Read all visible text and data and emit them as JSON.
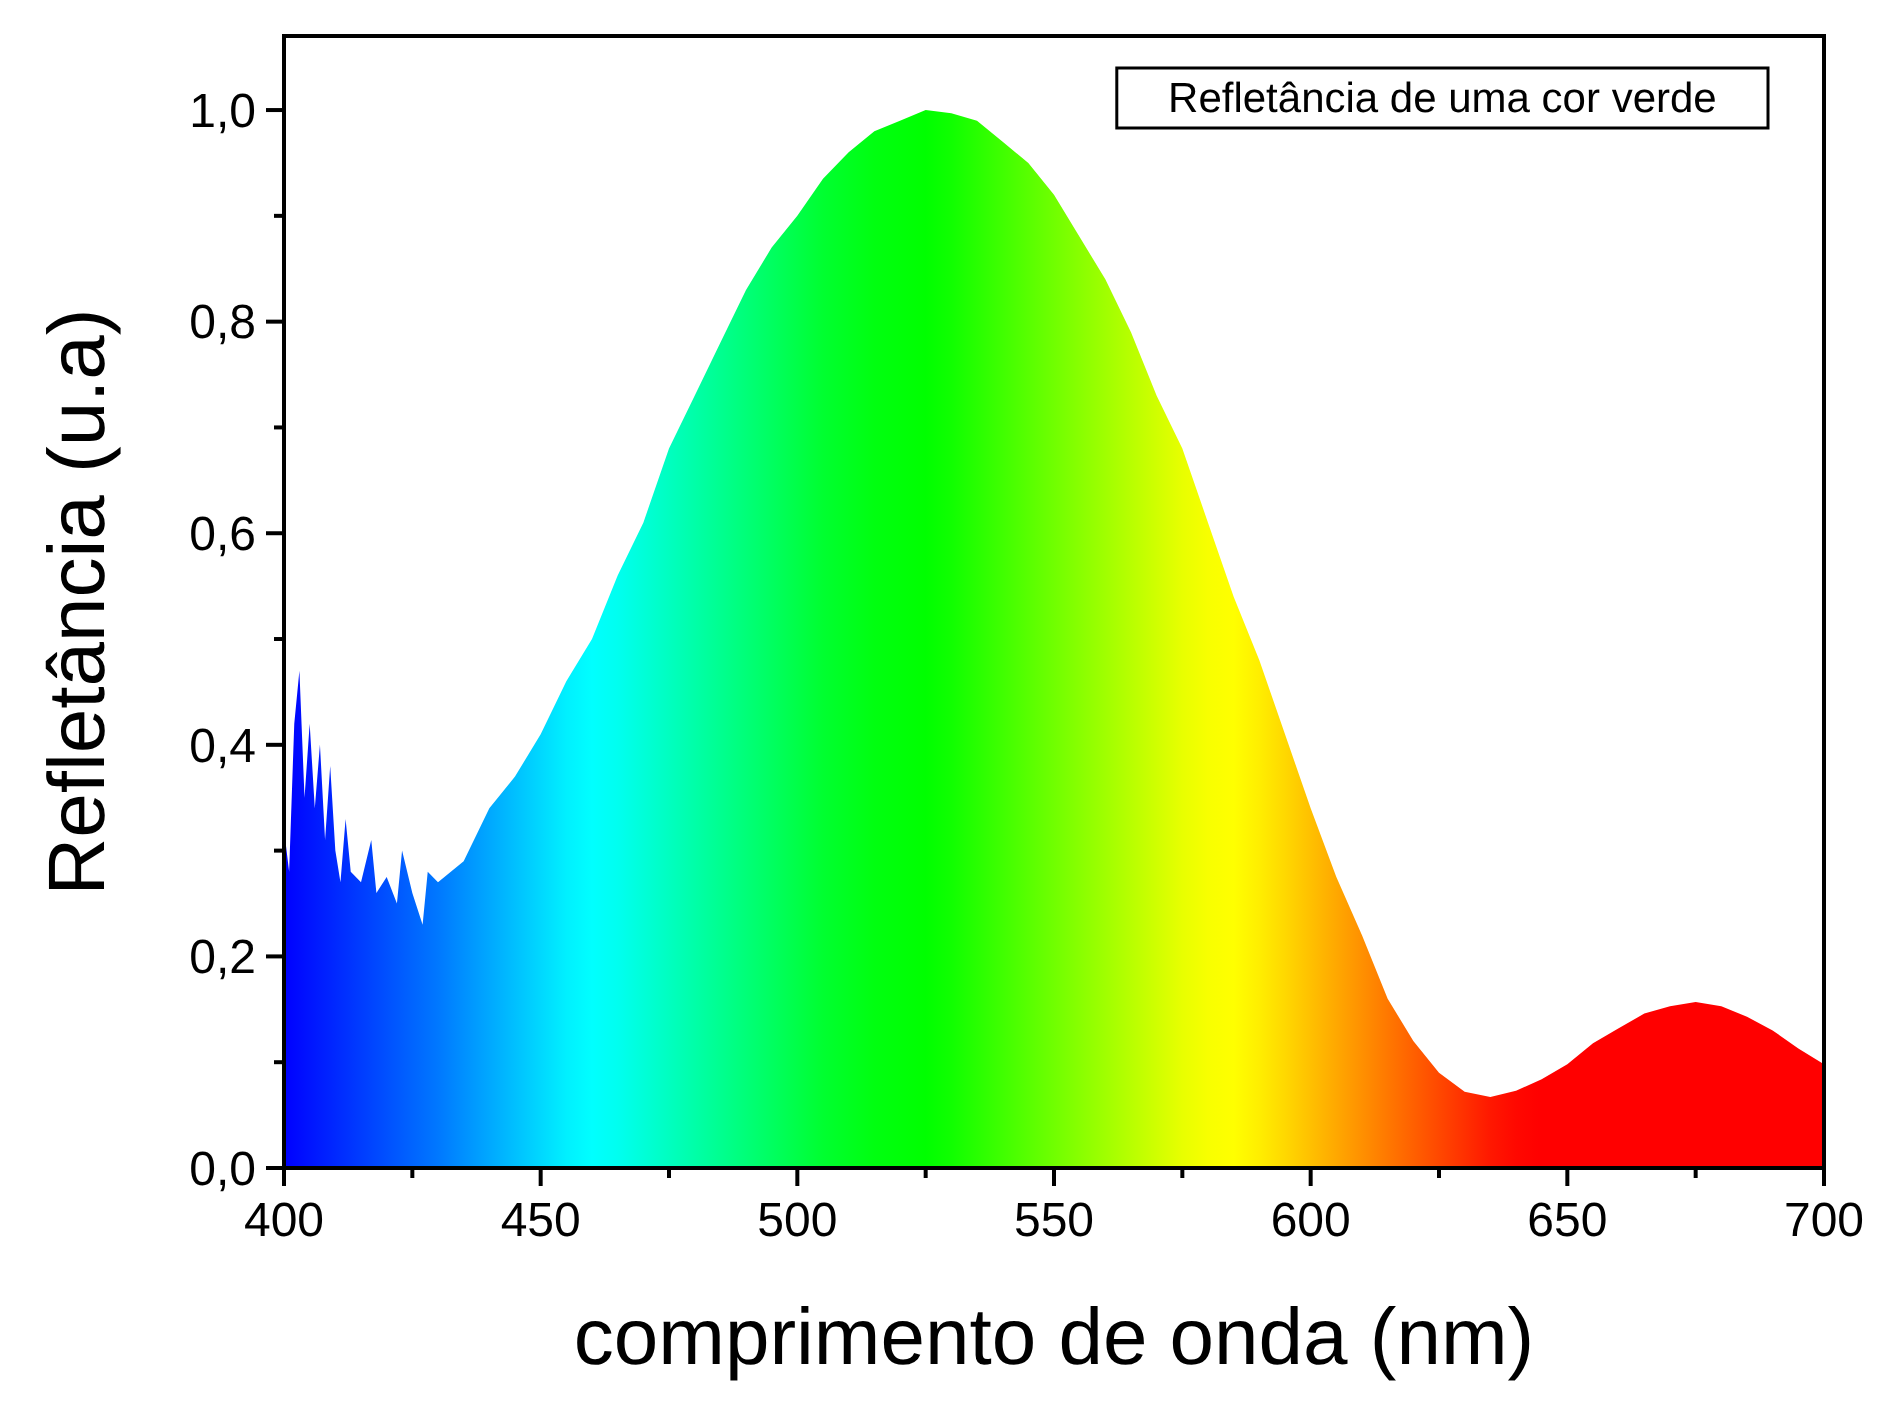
{
  "chart_data": {
    "type": "area",
    "xlabel": "comprimento de onda (nm)",
    "ylabel": "Refletância (u.a)",
    "annotations": [
      "Refletância de uma cor verde"
    ],
    "xlim": [
      400,
      700
    ],
    "ylim": [
      0,
      1.07
    ],
    "xticks": [
      400,
      {
        "value": 425,
        "label": null
      },
      450,
      {
        "value": 475,
        "label": null
      },
      500,
      {
        "value": 525,
        "label": null
      },
      550,
      {
        "value": 575,
        "label": null
      },
      600,
      {
        "value": 625,
        "label": null
      },
      650,
      {
        "value": 675,
        "label": null
      },
      700
    ],
    "yticks": [
      {
        "value": 0,
        "label": "0,0"
      },
      {
        "value": 0.1,
        "label": null
      },
      {
        "value": 0.2,
        "label": "0,2"
      },
      {
        "value": 0.3,
        "label": null
      },
      {
        "value": 0.4,
        "label": "0,4"
      },
      {
        "value": 0.5,
        "label": null
      },
      {
        "value": 0.6,
        "label": "0,6"
      },
      {
        "value": 0.7,
        "label": null
      },
      {
        "value": 0.8,
        "label": "0,8"
      },
      {
        "value": 0.9,
        "label": null
      },
      {
        "value": 1,
        "label": "1,0"
      }
    ],
    "grid": false,
    "series": [
      {
        "x": [
          400,
          401,
          402,
          403,
          404,
          405,
          406,
          407,
          408,
          409,
          410,
          411,
          412,
          413,
          415,
          417,
          418,
          420,
          422,
          423,
          425,
          427,
          428,
          430,
          435,
          440,
          445,
          450,
          455,
          460,
          465,
          470,
          475,
          480,
          485,
          490,
          495,
          500,
          505,
          510,
          515,
          520,
          525,
          530,
          535,
          540,
          545,
          550,
          555,
          560,
          565,
          570,
          575,
          580,
          585,
          590,
          595,
          600,
          605,
          610,
          615,
          620,
          625,
          630,
          635,
          640,
          645,
          650,
          655,
          660,
          665,
          670,
          675,
          680,
          685,
          690,
          695,
          700
        ],
        "values": [
          0.32,
          0.28,
          0.42,
          0.47,
          0.35,
          0.42,
          0.34,
          0.4,
          0.31,
          0.38,
          0.3,
          0.27,
          0.33,
          0.28,
          0.27,
          0.31,
          0.26,
          0.275,
          0.25,
          0.3,
          0.26,
          0.23,
          0.28,
          0.27,
          0.29,
          0.34,
          0.37,
          0.41,
          0.46,
          0.5,
          0.56,
          0.61,
          0.68,
          0.73,
          0.78,
          0.83,
          0.87,
          0.9,
          0.935,
          0.96,
          0.98,
          0.99,
          1.0,
          0.997,
          0.99,
          0.97,
          0.95,
          0.92,
          0.88,
          0.84,
          0.79,
          0.73,
          0.68,
          0.61,
          0.54,
          0.48,
          0.41,
          0.34,
          0.275,
          0.22,
          0.16,
          0.12,
          0.09,
          0.072,
          0.067,
          0.073,
          0.084,
          0.098,
          0.118,
          0.132,
          0.146,
          0.153,
          0.157,
          0.153,
          0.143,
          0.13,
          0.113,
          0.098
        ],
        "colors": [
          "#0000ff",
          "#0004ff",
          "#0008ff",
          "#000cff",
          "#0010ff",
          "#0014ff",
          "#0018ff",
          "#001cff",
          "#0020ff",
          "#0024ff",
          "#0028ff",
          "#002cff",
          "#0030ff",
          "#0034ff",
          "#003cff",
          "#0044ff",
          "#0048ff",
          "#0050ff",
          "#0058ff",
          "#005cff",
          "#0064ff",
          "#006cff",
          "#0070ff",
          "#0078ff",
          "#0090ff",
          "#00a8ff",
          "#00c0ff",
          "#00d8ff",
          "#00f0ff",
          "#00ffff",
          "#00fff0",
          "#00ffd8",
          "#00ffc0",
          "#00ffa8",
          "#00ff90",
          "#00ff78",
          "#00ff60",
          "#00ff48",
          "#00ff30",
          "#00ff20",
          "#00ff10",
          "#00ff08",
          "#00ff00",
          "#10ff00",
          "#28ff00",
          "#40ff00",
          "#58ff00",
          "#70ff00",
          "#88ff00",
          "#a0ff00",
          "#b8ff00",
          "#d0ff00",
          "#e8ff00",
          "#f8ff00",
          "#ffff00",
          "#ffee00",
          "#ffd800",
          "#ffc000",
          "#ffa800",
          "#ff9000",
          "#ff7800",
          "#ff6000",
          "#ff4800",
          "#ff3000",
          "#ff1800",
          "#ff0800",
          "#ff0000",
          "#ff0000",
          "#ff0000",
          "#ff0000",
          "#ff0000",
          "#ff0000",
          "#ff0000",
          "#ff0000",
          "#ff0000",
          "#ff0000",
          "#ff0000",
          "#ff0000"
        ]
      }
    ]
  }
}
